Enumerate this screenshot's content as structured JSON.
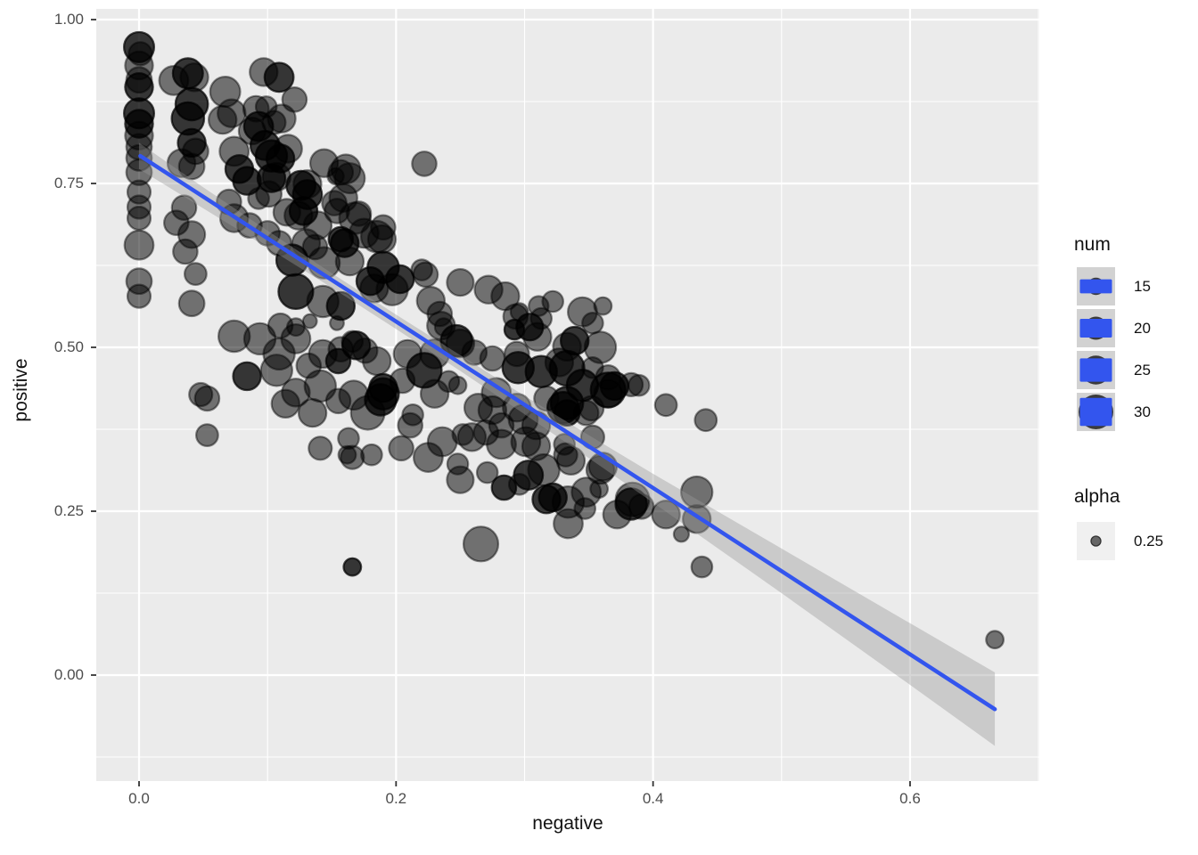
{
  "figure_type": "ggplot scatter with linear smooth",
  "colors": {
    "panel_bg": "#EBEBEB",
    "grid": "#FFFFFF",
    "accent_blue": "#3355EE",
    "ribbon": "#999999",
    "point": "#000000",
    "tick_text": "#4d4d4d",
    "num_key_bg": "#D2D2D2",
    "alpha_key_bg": "#F0F0F0"
  },
  "axes": {
    "x": {
      "title": "negative"
    },
    "y": {
      "title": "positive"
    }
  },
  "legend": {
    "num_title": "num",
    "num_items": [
      {
        "size": 15,
        "label": "15"
      },
      {
        "size": 20,
        "label": "20"
      },
      {
        "size": 25,
        "label": "25"
      },
      {
        "size": 30,
        "label": "30"
      }
    ],
    "alpha_title": "alpha",
    "alpha_items": [
      {
        "value": 0.25,
        "label": "0.25"
      }
    ]
  },
  "chart_data": {
    "type": "scatter",
    "title": "",
    "xlabel": "negative",
    "ylabel": "positive",
    "xlim": [
      -0.0333,
      0.7006
    ],
    "ylim": [
      -0.1617,
      1.0163
    ],
    "x_ticks": [
      {
        "v": 0.0,
        "label": "0.0"
      },
      {
        "v": 0.2,
        "label": "0.2"
      },
      {
        "v": 0.4,
        "label": "0.4"
      },
      {
        "v": 0.6,
        "label": "0.6"
      }
    ],
    "y_ticks": [
      {
        "v": 0.0,
        "label": "0.00"
      },
      {
        "v": 0.25,
        "label": "0.25"
      },
      {
        "v": 0.5,
        "label": "0.50"
      },
      {
        "v": 0.75,
        "label": "0.75"
      },
      {
        "v": 1.0,
        "label": "1.00"
      }
    ],
    "x_minor": [
      0.1,
      0.3,
      0.5,
      0.7
    ],
    "y_minor": [
      -0.125,
      0.125,
      0.375,
      0.625,
      0.875
    ],
    "grid": "white major+minor on gray panel",
    "legend_position": "right",
    "smooth": {
      "method": "lm",
      "color": "#3355EE",
      "line": [
        [
          0.001,
          0.792
        ],
        [
          0.666,
          -0.052
        ]
      ],
      "ribbon_alpha": 0.4,
      "ribbon_upper": [
        [
          0,
          0.812
        ],
        [
          0.05,
          0.744
        ],
        [
          0.1,
          0.678
        ],
        [
          0.15,
          0.613
        ],
        [
          0.2,
          0.55
        ],
        [
          0.25,
          0.488
        ],
        [
          0.3,
          0.426
        ],
        [
          0.35,
          0.366
        ],
        [
          0.4,
          0.307
        ],
        [
          0.45,
          0.25
        ],
        [
          0.5,
          0.193
        ],
        [
          0.55,
          0.136
        ],
        [
          0.6,
          0.079
        ],
        [
          0.666,
          0.004
        ]
      ],
      "ribbon_lower": [
        [
          0,
          0.772
        ],
        [
          0.05,
          0.712
        ],
        [
          0.1,
          0.652
        ],
        [
          0.15,
          0.591
        ],
        [
          0.2,
          0.528
        ],
        [
          0.25,
          0.464
        ],
        [
          0.3,
          0.398
        ],
        [
          0.35,
          0.331
        ],
        [
          0.4,
          0.263
        ],
        [
          0.45,
          0.194
        ],
        [
          0.5,
          0.125
        ],
        [
          0.55,
          0.055
        ],
        [
          0.6,
          -0.015
        ],
        [
          0.666,
          -0.108
        ]
      ]
    },
    "points_note": "each point = [negative, positive, num(size 12-30), stack(optional overlap count)], alpha aesthetic = 0.25",
    "points": [
      [
        0.0,
        0.958,
        26,
        2
      ],
      [
        0.001,
        0.948,
        20
      ],
      [
        0.0,
        0.93,
        24
      ],
      [
        0.0,
        0.908,
        22
      ],
      [
        0.0,
        0.897,
        24,
        2
      ],
      [
        0.0,
        0.857,
        26,
        2
      ],
      [
        0.0,
        0.841,
        24,
        2
      ],
      [
        0.0,
        0.823,
        24
      ],
      [
        0.0,
        0.806,
        22
      ],
      [
        0.0,
        0.789,
        22
      ],
      [
        0.0,
        0.767,
        22
      ],
      [
        0.0,
        0.737,
        20
      ],
      [
        0.0,
        0.714,
        20
      ],
      [
        0.0,
        0.697,
        20
      ],
      [
        0.0,
        0.656,
        25
      ],
      [
        0.0,
        0.601,
        22
      ],
      [
        0.0,
        0.578,
        20
      ],
      [
        0.038,
        0.918,
        26,
        2
      ],
      [
        0.027,
        0.907,
        25
      ],
      [
        0.043,
        0.912,
        24
      ],
      [
        0.041,
        0.871,
        28,
        2
      ],
      [
        0.038,
        0.849,
        28,
        2
      ],
      [
        0.041,
        0.812,
        24,
        2
      ],
      [
        0.044,
        0.799,
        22
      ],
      [
        0.033,
        0.781,
        24
      ],
      [
        0.041,
        0.776,
        22
      ],
      [
        0.035,
        0.713,
        21
      ],
      [
        0.029,
        0.69,
        21
      ],
      [
        0.041,
        0.672,
        23
      ],
      [
        0.036,
        0.646,
        21
      ],
      [
        0.044,
        0.612,
        19
      ],
      [
        0.041,
        0.567,
        22
      ],
      [
        0.048,
        0.428,
        20
      ],
      [
        0.053,
        0.366,
        19
      ],
      [
        0.053,
        0.422,
        21
      ],
      [
        0.067,
        0.89,
        26
      ],
      [
        0.072,
        0.857,
        24
      ],
      [
        0.091,
        0.864,
        22
      ],
      [
        0.065,
        0.847,
        24
      ],
      [
        0.088,
        0.83,
        23
      ],
      [
        0.097,
        0.92,
        24
      ],
      [
        0.109,
        0.912,
        25,
        2
      ],
      [
        0.121,
        0.878,
        21
      ],
      [
        0.099,
        0.867,
        18
      ],
      [
        0.111,
        0.849,
        24
      ],
      [
        0.093,
        0.837,
        25,
        2
      ],
      [
        0.098,
        0.808,
        25,
        2
      ],
      [
        0.103,
        0.792,
        27,
        2
      ],
      [
        0.074,
        0.799,
        25
      ],
      [
        0.078,
        0.772,
        24,
        2
      ],
      [
        0.084,
        0.754,
        24,
        2
      ],
      [
        0.103,
        0.758,
        24,
        2
      ],
      [
        0.11,
        0.788,
        24,
        2
      ],
      [
        0.116,
        0.803,
        24
      ],
      [
        0.105,
        0.843,
        20
      ],
      [
        0.107,
        0.76,
        24
      ],
      [
        0.126,
        0.747,
        25,
        2
      ],
      [
        0.131,
        0.733,
        25,
        2
      ],
      [
        0.128,
        0.708,
        24,
        2
      ],
      [
        0.101,
        0.734,
        22
      ],
      [
        0.131,
        0.749,
        24
      ],
      [
        0.144,
        0.781,
        24
      ],
      [
        0.157,
        0.767,
        21
      ],
      [
        0.153,
        0.761,
        14
      ],
      [
        0.161,
        0.772,
        25
      ],
      [
        0.159,
        0.728,
        24
      ],
      [
        0.164,
        0.758,
        26
      ],
      [
        0.152,
        0.72,
        21
      ],
      [
        0.168,
        0.697,
        27
      ],
      [
        0.124,
        0.701,
        24
      ],
      [
        0.154,
        0.708,
        21
      ],
      [
        0.115,
        0.706,
        23
      ],
      [
        0.185,
        0.669,
        27
      ],
      [
        0.19,
        0.683,
        21
      ],
      [
        0.157,
        0.665,
        21,
        2
      ],
      [
        0.137,
        0.653,
        21
      ],
      [
        0.171,
        0.704,
        21
      ],
      [
        0.175,
        0.674,
        25
      ],
      [
        0.16,
        0.659,
        24,
        2
      ],
      [
        0.139,
        0.686,
        24
      ],
      [
        0.13,
        0.659,
        24
      ],
      [
        0.119,
        0.633,
        27,
        2
      ],
      [
        0.109,
        0.659,
        21
      ],
      [
        0.1,
        0.674,
        21
      ],
      [
        0.086,
        0.686,
        21
      ],
      [
        0.074,
        0.697,
        24
      ],
      [
        0.07,
        0.722,
        21
      ],
      [
        0.093,
        0.727,
        18
      ],
      [
        0.144,
        0.629,
        27
      ],
      [
        0.164,
        0.631,
        24
      ],
      [
        0.222,
        0.78,
        21
      ],
      [
        0.189,
        0.665,
        24
      ],
      [
        0.19,
        0.622,
        27,
        2
      ],
      [
        0.203,
        0.604,
        24,
        2
      ],
      [
        0.223,
        0.611,
        21
      ],
      [
        0.25,
        0.599,
        23
      ],
      [
        0.272,
        0.588,
        24
      ],
      [
        0.285,
        0.578,
        24
      ],
      [
        0.311,
        0.563,
        17
      ],
      [
        0.227,
        0.571,
        24
      ],
      [
        0.234,
        0.551,
        21
      ],
      [
        0.237,
        0.531,
        15
      ],
      [
        0.293,
        0.547,
        21
      ],
      [
        0.292,
        0.527,
        17,
        2
      ],
      [
        0.31,
        0.516,
        24
      ],
      [
        0.183,
        0.59,
        24
      ],
      [
        0.22,
        0.618,
        18
      ],
      [
        0.197,
        0.588,
        27
      ],
      [
        0.18,
        0.601,
        24,
        2
      ],
      [
        0.122,
        0.585,
        30,
        2
      ],
      [
        0.143,
        0.57,
        27
      ],
      [
        0.157,
        0.563,
        24,
        2
      ],
      [
        0.122,
        0.531,
        15
      ],
      [
        0.133,
        0.54,
        12
      ],
      [
        0.154,
        0.537,
        12
      ],
      [
        0.11,
        0.533,
        21
      ],
      [
        0.169,
        0.503,
        24,
        2
      ],
      [
        0.155,
        0.479,
        21,
        2
      ],
      [
        0.122,
        0.513,
        25
      ],
      [
        0.109,
        0.49,
        27
      ],
      [
        0.143,
        0.49,
        24
      ],
      [
        0.132,
        0.472,
        21
      ],
      [
        0.157,
        0.497,
        21
      ],
      [
        0.166,
        0.509,
        18
      ],
      [
        0.141,
        0.441,
        27
      ],
      [
        0.122,
        0.431,
        24
      ],
      [
        0.114,
        0.414,
        24
      ],
      [
        0.135,
        0.4,
        24
      ],
      [
        0.155,
        0.418,
        21
      ],
      [
        0.167,
        0.427,
        25
      ],
      [
        0.19,
        0.438,
        24,
        2
      ],
      [
        0.205,
        0.449,
        21
      ],
      [
        0.185,
        0.479,
        24
      ],
      [
        0.176,
        0.495,
        21
      ],
      [
        0.209,
        0.49,
        24
      ],
      [
        0.23,
        0.49,
        25
      ],
      [
        0.247,
        0.51,
        27,
        2
      ],
      [
        0.235,
        0.533,
        24
      ],
      [
        0.074,
        0.517,
        27
      ],
      [
        0.094,
        0.513,
        27
      ],
      [
        0.084,
        0.456,
        24,
        2
      ],
      [
        0.107,
        0.465,
        27
      ],
      [
        0.25,
        0.506,
        24
      ],
      [
        0.261,
        0.492,
        21
      ],
      [
        0.222,
        0.465,
        30,
        2
      ],
      [
        0.23,
        0.429,
        24
      ],
      [
        0.241,
        0.448,
        18
      ],
      [
        0.248,
        0.442,
        15
      ],
      [
        0.19,
        0.429,
        27,
        2
      ],
      [
        0.275,
        0.483,
        21
      ],
      [
        0.295,
        0.469,
        27,
        2
      ],
      [
        0.294,
        0.49,
        21
      ],
      [
        0.304,
        0.531,
        23,
        2
      ],
      [
        0.313,
        0.544,
        18
      ],
      [
        0.296,
        0.554,
        15
      ],
      [
        0.322,
        0.57,
        18
      ],
      [
        0.345,
        0.554,
        25
      ],
      [
        0.353,
        0.537,
        18
      ],
      [
        0.361,
        0.563,
        15
      ],
      [
        0.339,
        0.51,
        24,
        2
      ],
      [
        0.359,
        0.5,
        27
      ],
      [
        0.327,
        0.477,
        24
      ],
      [
        0.313,
        0.463,
        27,
        2
      ],
      [
        0.333,
        0.501,
        24
      ],
      [
        0.333,
        0.468,
        30,
        2
      ],
      [
        0.353,
        0.469,
        18
      ],
      [
        0.365,
        0.454,
        21
      ],
      [
        0.365,
        0.435,
        30,
        2
      ],
      [
        0.389,
        0.442,
        18
      ],
      [
        0.383,
        0.443,
        20
      ],
      [
        0.333,
        0.415,
        28,
        2
      ],
      [
        0.333,
        0.4,
        22,
        2
      ],
      [
        0.348,
        0.4,
        21
      ],
      [
        0.41,
        0.412,
        19
      ],
      [
        0.441,
        0.389,
        19
      ],
      [
        0.278,
        0.431,
        25
      ],
      [
        0.264,
        0.408,
        24
      ],
      [
        0.294,
        0.408,
        24
      ],
      [
        0.317,
        0.422,
        21
      ],
      [
        0.345,
        0.442,
        27,
        2
      ],
      [
        0.299,
        0.39,
        25
      ],
      [
        0.301,
        0.356,
        25
      ],
      [
        0.275,
        0.404,
        24
      ],
      [
        0.27,
        0.37,
        21
      ],
      [
        0.252,
        0.367,
        18
      ],
      [
        0.236,
        0.356,
        25
      ],
      [
        0.211,
        0.381,
        21
      ],
      [
        0.213,
        0.397,
        18
      ],
      [
        0.178,
        0.4,
        29
      ],
      [
        0.188,
        0.42,
        27,
        2
      ],
      [
        0.163,
        0.361,
        18
      ],
      [
        0.162,
        0.336,
        15
      ],
      [
        0.33,
        0.408,
        27,
        2
      ],
      [
        0.352,
        0.407,
        21
      ],
      [
        0.365,
        0.429,
        24
      ],
      [
        0.37,
        0.441,
        24,
        2
      ],
      [
        0.332,
        0.336,
        20
      ],
      [
        0.361,
        0.318,
        24
      ],
      [
        0.309,
        0.381,
        24
      ],
      [
        0.282,
        0.381,
        21
      ],
      [
        0.259,
        0.363,
        24
      ],
      [
        0.282,
        0.352,
        25
      ],
      [
        0.309,
        0.349,
        24
      ],
      [
        0.331,
        0.352,
        18
      ],
      [
        0.353,
        0.363,
        20
      ],
      [
        0.336,
        0.327,
        24
      ],
      [
        0.315,
        0.313,
        27
      ],
      [
        0.359,
        0.313,
        24
      ],
      [
        0.296,
        0.291,
        18
      ],
      [
        0.271,
        0.309,
        18
      ],
      [
        0.248,
        0.322,
        18
      ],
      [
        0.225,
        0.332,
        25
      ],
      [
        0.204,
        0.346,
        21
      ],
      [
        0.181,
        0.336,
        18
      ],
      [
        0.141,
        0.346,
        20
      ],
      [
        0.166,
        0.332,
        20
      ],
      [
        0.322,
        0.271,
        24,
        2
      ],
      [
        0.348,
        0.279,
        25
      ],
      [
        0.25,
        0.298,
        23
      ],
      [
        0.284,
        0.286,
        21,
        2
      ],
      [
        0.303,
        0.305,
        25,
        2
      ],
      [
        0.317,
        0.268,
        24,
        2
      ],
      [
        0.334,
        0.264,
        27
      ],
      [
        0.334,
        0.231,
        25
      ],
      [
        0.347,
        0.254,
        18
      ],
      [
        0.358,
        0.284,
        15
      ],
      [
        0.372,
        0.245,
        24
      ],
      [
        0.384,
        0.268,
        29
      ],
      [
        0.391,
        0.257,
        21
      ],
      [
        0.434,
        0.279,
        27
      ],
      [
        0.383,
        0.261,
        27,
        2
      ],
      [
        0.41,
        0.245,
        24
      ],
      [
        0.434,
        0.238,
        24
      ],
      [
        0.422,
        0.215,
        13
      ],
      [
        0.438,
        0.165,
        18
      ],
      [
        0.266,
        0.2,
        30
      ],
      [
        0.166,
        0.165,
        15,
        2
      ],
      [
        0.666,
        0.054,
        15
      ]
    ],
    "legends": [
      {
        "title": "num",
        "items": [
          "15",
          "20",
          "25",
          "30"
        ]
      },
      {
        "title": "alpha",
        "items": [
          "0.25"
        ]
      }
    ]
  }
}
